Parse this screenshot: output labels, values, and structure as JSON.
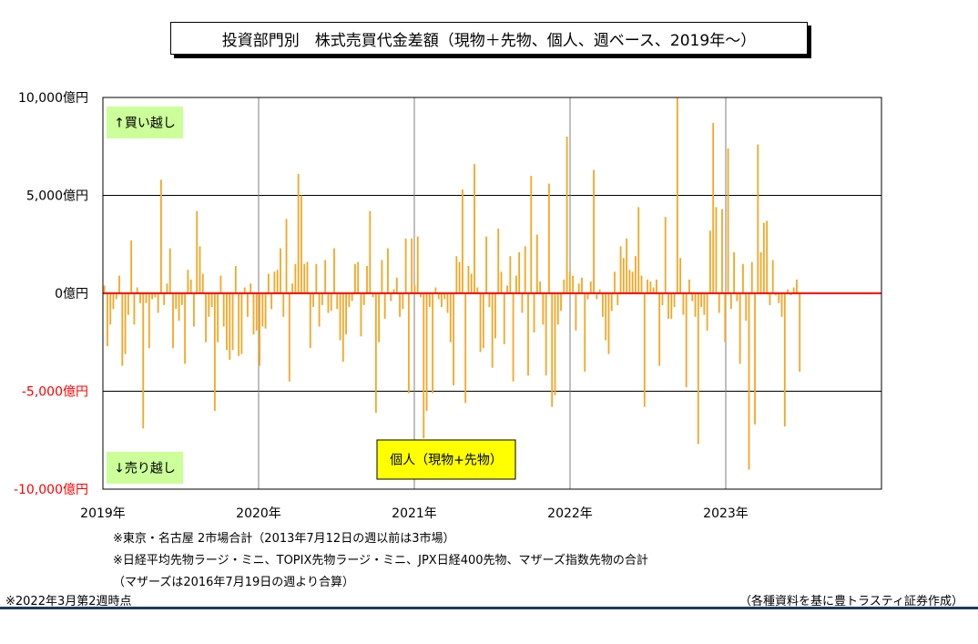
{
  "title": "投資部門別　株式売買代金差額（現物＋先物、個人、週ベース、2019年～）",
  "chart_data": {
    "type": "bar",
    "series": [
      {
        "name": "個人（現物+先物）",
        "color": "#f5a623"
      }
    ],
    "y_ticks": [
      {
        "value": 10000,
        "label": "10,000億円",
        "color": "#000000"
      },
      {
        "value": 5000,
        "label": "5,000億円",
        "color": "#000000"
      },
      {
        "value": 0,
        "label": "0億円",
        "color": "#000000"
      },
      {
        "value": -5000,
        "label": "-5,000億円",
        "color": "#ff0000"
      },
      {
        "value": -10000,
        "label": "-10,000億円",
        "color": "#ff0000"
      }
    ],
    "ylim": [
      -10000,
      10000
    ],
    "x_ticks": [
      "2019年",
      "2020年",
      "2021年",
      "2022年",
      "2023年"
    ],
    "xlim_years": [
      2019,
      2024
    ],
    "zero_line_color": "#ff0000",
    "annotations": {
      "buy": "↑買い越し",
      "sell": "↓売り越し"
    },
    "values": [
      400,
      -2700,
      -1600,
      -800,
      -300,
      900,
      -3700,
      -3100,
      -1100,
      2700,
      -1600,
      300,
      -500,
      -6900,
      -500,
      -2800,
      -300,
      -200,
      -1000,
      5800,
      -600,
      500,
      2300,
      -2800,
      -800,
      -1400,
      -600,
      -3600,
      1200,
      700,
      -1700,
      4200,
      2400,
      1000,
      -2500,
      -1200,
      -700,
      -6000,
      -2500,
      900,
      -1700,
      -2900,
      -3400,
      -2900,
      1400,
      -3200,
      -3100,
      300,
      -1200,
      500,
      -2100,
      -1900,
      -3700,
      -1700,
      -1800,
      1000,
      -800,
      1100,
      1200,
      2300,
      -1200,
      3800,
      -4500,
      500,
      1500,
      6100,
      5000,
      1500,
      1600,
      -2800,
      -700,
      1500,
      -1700,
      -600,
      1700,
      -1000,
      -900,
      2300,
      -800,
      -2400,
      -3500,
      -2100,
      -700,
      -400,
      1500,
      1600,
      -2200,
      -600,
      1400,
      4200,
      -200,
      -6100,
      -2500,
      1700,
      -1300,
      2300,
      -400,
      200,
      800,
      -1200,
      -800,
      2800,
      -5100,
      2800,
      400,
      2900,
      -200,
      -7400,
      -6000,
      -700,
      -5100,
      300,
      -300,
      -700,
      -300,
      -1000,
      -2500,
      -4700,
      1900,
      1600,
      5300,
      -5600,
      1400,
      1000,
      6600,
      300,
      -3000,
      -2800,
      2900,
      -700,
      -3800,
      -2300,
      3300,
      1100,
      -2600,
      400,
      1900,
      -4500,
      900,
      2100,
      -1000,
      2400,
      -4200,
      6000,
      -2000,
      3000,
      600,
      -1600,
      -4200,
      5600,
      -5800,
      -5200,
      -1600,
      -900,
      700,
      8000,
      1100,
      900,
      -1900,
      500,
      800,
      -4000,
      -300,
      600,
      6300,
      -300,
      200,
      -1200,
      -2400,
      -3100,
      -900,
      1100,
      -600,
      2400,
      1800,
      2800,
      1200,
      1100,
      1900,
      4400,
      900,
      -5800,
      700,
      600,
      300,
      700,
      -3700,
      -600,
      3900,
      -1300,
      -1300,
      -700,
      10000,
      1800,
      -1100,
      -4800,
      700,
      -400,
      -1200,
      -7700,
      -700,
      -1100,
      -1900,
      3200,
      8700,
      4400,
      -1000,
      4300,
      -2500,
      7400,
      -800,
      2100,
      -400,
      -3600,
      1500,
      -1400,
      -9000,
      1600,
      -6700,
      7600,
      2100,
      3600,
      3700,
      -600,
      1700,
      -100,
      -500,
      -1200,
      -6800,
      200,
      -100,
      300,
      700,
      -4000
    ]
  },
  "legend_label": "個人（現物+先物）",
  "notes": {
    "line1": "※東京・名古屋 2市場合計（2013年7月12日の週以前は3市場）",
    "line2": "※日経平均先物ラージ・ミニ、TOPIX先物ラージ・ミニ、JPX日経400先物、マザーズ指数先物の合計",
    "line3": "（マザーズは2016年7月19日の週より合算）",
    "asof": "※2022年3月第2週時点",
    "source": "（各種資料を基に豊トラスティ証券作成）"
  }
}
